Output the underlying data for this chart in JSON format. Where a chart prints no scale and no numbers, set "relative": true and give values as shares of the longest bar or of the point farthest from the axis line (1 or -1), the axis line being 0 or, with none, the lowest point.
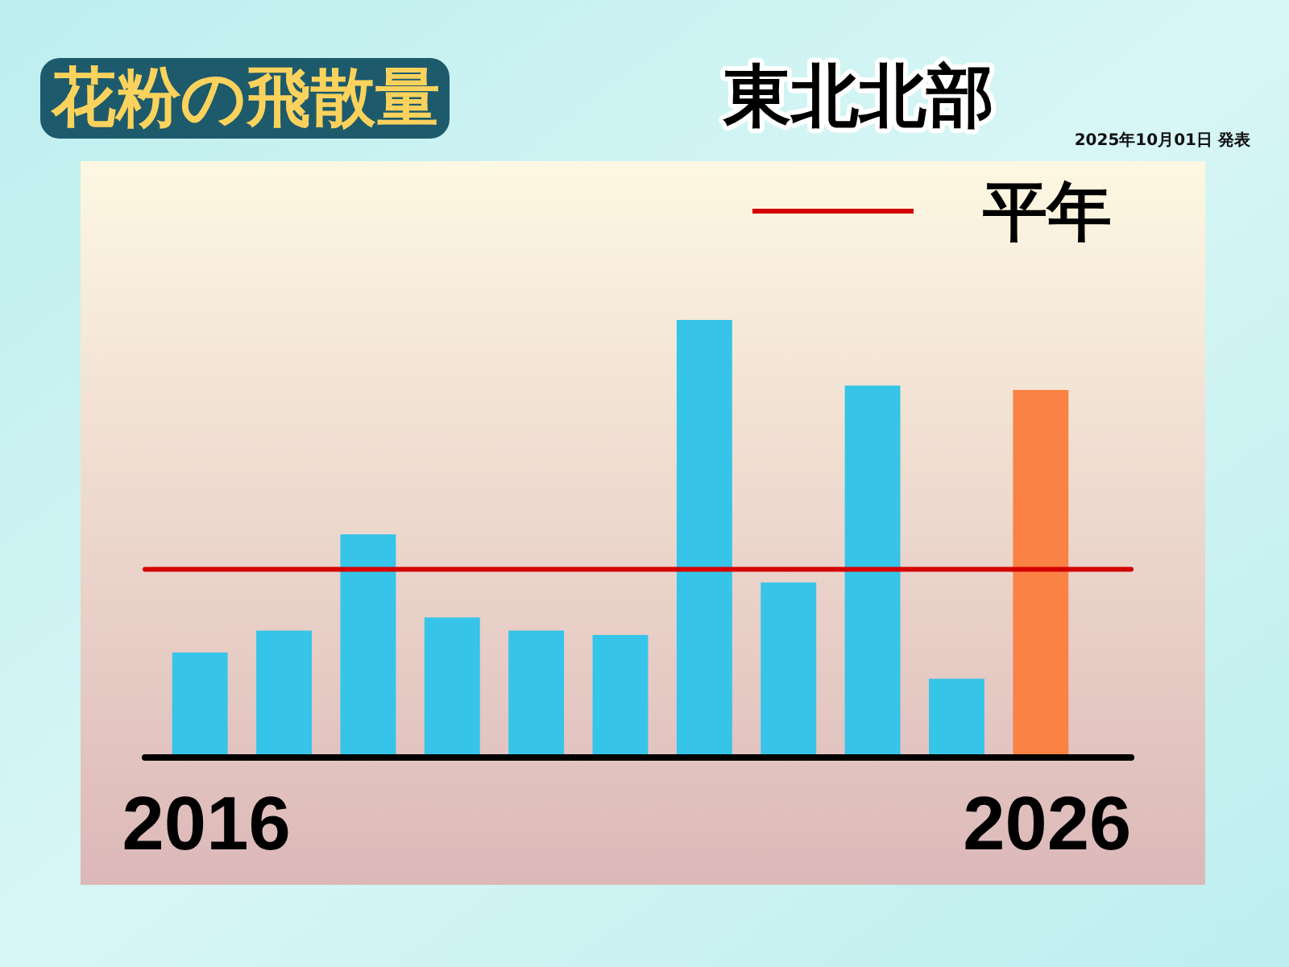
{
  "chart_data": {
    "type": "bar",
    "title": "花粉の飛散量",
    "subtitle": "東北北部",
    "annotations": [
      "2025年10月01日 発表"
    ],
    "categories": [
      "2016",
      null,
      null,
      null,
      null,
      null,
      null,
      null,
      null,
      null,
      "2026"
    ],
    "values": [
      0.24,
      0.29,
      0.51,
      0.32,
      0.29,
      0.28,
      1,
      0.4,
      0.85,
      0.18,
      0.84
    ],
    "colors": [
      "#36c4e8",
      "#36c4e8",
      "#36c4e8",
      "#36c4e8",
      "#36c4e8",
      "#36c4e8",
      "#36c4e8",
      "#36c4e8",
      "#36c4e8",
      "#36c4e8",
      "#fa8244"
    ],
    "relative": true,
    "ref_lines": [
      {
        "axis": "y",
        "value": 0.43,
        "label": "平年",
        "color": "#d40000"
      }
    ],
    "legend": "top right"
  }
}
